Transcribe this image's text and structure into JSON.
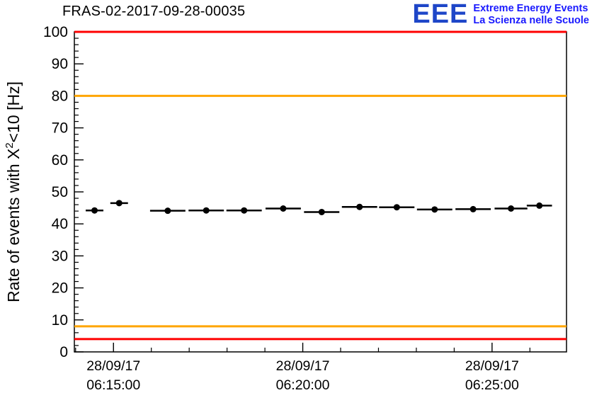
{
  "header": {
    "title": "FRAS-02-2017-09-28-00035",
    "logo": {
      "acronym": "EEE",
      "line1": "Extreme Energy Events",
      "line2": "La Scienza nelle Scuole"
    }
  },
  "chart_data": {
    "type": "scatter",
    "title": "FRAS-02-2017-09-28-00035",
    "ylabel_parts": {
      "prefix": "Rate of events with X",
      "sup": "2",
      "suffix": "<10 [Hz]"
    },
    "ylim": [
      0,
      100
    ],
    "y_major_step": 10,
    "y_minor_step": 2,
    "y_tick_labels": [
      "0",
      "10",
      "20",
      "30",
      "40",
      "50",
      "60",
      "70",
      "80",
      "90",
      "100"
    ],
    "xlim_seconds": [
      838,
      1618
    ],
    "x_minor_step": 60,
    "x_major_ticks": [
      {
        "t": 900,
        "label_date": "28/09/17",
        "label_time": "06:15:00"
      },
      {
        "t": 1200,
        "label_date": "28/09/17",
        "label_time": "06:20:00"
      },
      {
        "t": 1500,
        "label_date": "28/09/17",
        "label_time": "06:25:00"
      }
    ],
    "ref_lines": [
      {
        "y": 100,
        "color": "#ff0000"
      },
      {
        "y": 80,
        "color": "#ffa500"
      },
      {
        "y": 8,
        "color": "#ffa500"
      },
      {
        "y": 4,
        "color": "#ff0000"
      }
    ],
    "marker_color": "#000000",
    "points": [
      {
        "t": 870,
        "y": 44.2,
        "xerr": 14
      },
      {
        "t": 909,
        "y": 46.5,
        "xerr": 14
      },
      {
        "t": 986,
        "y": 44.1,
        "xerr": 28
      },
      {
        "t": 1047,
        "y": 44.2,
        "xerr": 28
      },
      {
        "t": 1107,
        "y": 44.2,
        "xerr": 28
      },
      {
        "t": 1169,
        "y": 44.8,
        "xerr": 28
      },
      {
        "t": 1230,
        "y": 43.7,
        "xerr": 28
      },
      {
        "t": 1290,
        "y": 45.3,
        "xerr": 28
      },
      {
        "t": 1349,
        "y": 45.2,
        "xerr": 28
      },
      {
        "t": 1409,
        "y": 44.5,
        "xerr": 28
      },
      {
        "t": 1470,
        "y": 44.6,
        "xerr": 28
      },
      {
        "t": 1530,
        "y": 44.8,
        "xerr": 26
      },
      {
        "t": 1575,
        "y": 45.7,
        "xerr": 20
      }
    ]
  }
}
